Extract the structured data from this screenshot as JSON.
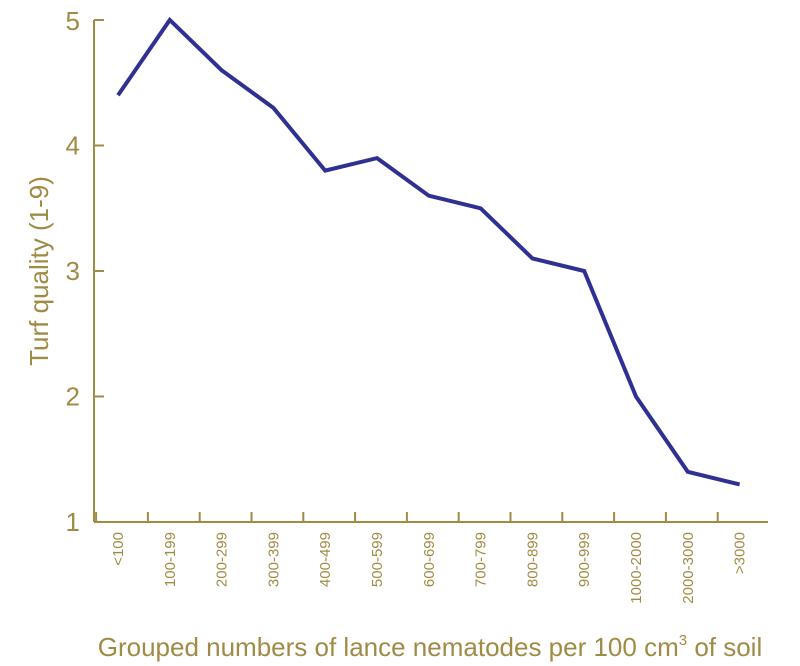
{
  "chart_data": {
    "type": "line",
    "title": "",
    "xlabel": "Grouped numbers of lance nematodes per 100 cm",
    "xlabel_superscript": "3",
    "xlabel_suffix": " of soil",
    "ylabel": "Turf quality (1-9)",
    "ylim": [
      1,
      5
    ],
    "yticks": [
      "1",
      "2",
      "3",
      "4",
      "5"
    ],
    "categories": [
      "<100",
      "100-199",
      "200-299",
      "300-399",
      "400-499",
      "500-599",
      "600-699",
      "700-799",
      "800-899",
      "900-999",
      "1000-2000",
      "2000-3000",
      ">3000"
    ],
    "series": [
      {
        "values": [
          4.4,
          5.0,
          4.6,
          4.3,
          3.8,
          3.9,
          3.6,
          3.5,
          3.1,
          3.0,
          2.0,
          1.4,
          1.3
        ]
      }
    ],
    "grid": false,
    "colors": {
      "axis": "#a08b45",
      "line": "#2e3192"
    }
  }
}
